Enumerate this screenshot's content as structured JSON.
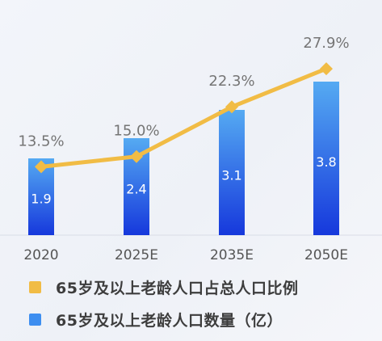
{
  "chart_data": {
    "type": "bar",
    "categories": [
      "2020",
      "2025E",
      "2035E",
      "2050E"
    ],
    "series": [
      {
        "name": "65岁及以上老龄人口数量（亿）",
        "kind": "bar",
        "values": [
          1.9,
          2.4,
          3.1,
          3.8
        ],
        "labels": [
          "1.9",
          "2.4",
          "3.1",
          "3.8"
        ],
        "color_top": "#55aaf2",
        "color_bottom": "#1638dc"
      },
      {
        "name": "65岁及以上老龄人口占总人口比例",
        "kind": "line",
        "values": [
          13.5,
          15.0,
          22.3,
          27.9
        ],
        "labels": [
          "13.5%",
          "15.0%",
          "22.3%",
          "27.9%"
        ],
        "color": "#f1bc45"
      }
    ],
    "legend": [
      "65岁及以上老龄人口占总人口比例",
      "65岁及以上老龄人口数量（亿）"
    ],
    "legend_position": "bottom",
    "xlabel": "",
    "ylabel": ""
  }
}
